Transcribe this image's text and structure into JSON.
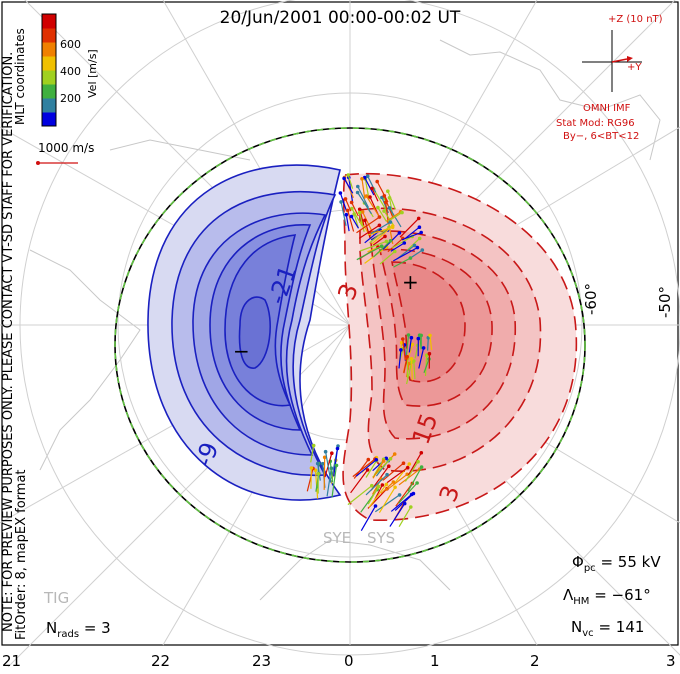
{
  "title": "20/Jun/2001 00:00-00:02 UT",
  "side_notes": {
    "coords": "MLT coordinates",
    "preview": "NOTE: FOR PREVIEW PURPOSES ONLY. PLEASE CONTACT VT-SD STAFF FOR VERIFICATION.",
    "fit": "FitOrder: 8,  mapEX format"
  },
  "colorbar": {
    "label": "Vel [m/s]",
    "ticks": [
      "600",
      "400",
      "200"
    ],
    "colors": [
      "#0000e0",
      "#3080a0",
      "#40b040",
      "#a0d020",
      "#f0c000",
      "#f08000",
      "#e03000",
      "#d00000"
    ]
  },
  "scale_vector": "1000 m/s",
  "imf": {
    "bz_label": "+Z (10 nT)",
    "by_label": "+Y",
    "source": "OMNI IMF",
    "model": "Stat Mod: RG96",
    "condition": "By−,  6<BT<12"
  },
  "latitude_labels": [
    "-60°",
    "-50°"
  ],
  "contours": {
    "negative": [
      "-21",
      "-9"
    ],
    "positive": [
      "3",
      "15",
      "3"
    ]
  },
  "extrema": {
    "min": "−",
    "max": "+"
  },
  "radar_codes": [
    "SYE",
    "SYS",
    "TIG"
  ],
  "stats": {
    "phi_symbol": "Φ",
    "phi_sub": "pc",
    "phi_value": "= 55 kV",
    "lambda_symbol": "Λ",
    "lambda_sub": "HM",
    "lambda_value": "= −61°",
    "nvc_symbol": "N",
    "nvc_sub": "vc",
    "nvc_value": "= 141",
    "nrads_symbol": "N",
    "nrads_sub": "rads",
    "nrads_value": "= 3"
  },
  "mlt_axis": [
    "21",
    "22",
    "23",
    "0",
    "1",
    "2",
    "3"
  ],
  "colors": {
    "negative": "#1a20c0",
    "positive": "#c81818",
    "boundary": "#60c040"
  }
}
